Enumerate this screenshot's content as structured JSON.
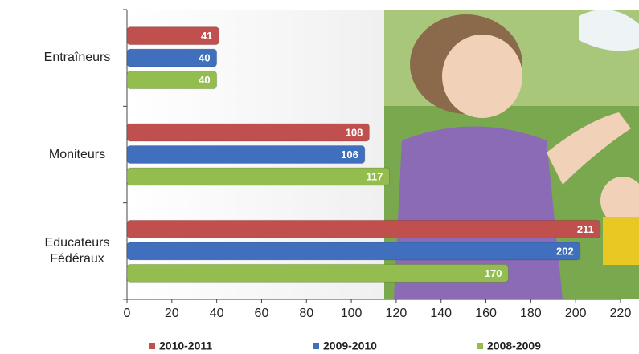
{
  "chart_data": {
    "type": "bar",
    "orientation": "horizontal",
    "categories": [
      "Entraîneurs",
      "Moniteurs",
      "Educateurs Fédéraux"
    ],
    "series": [
      {
        "name": "2010-2011",
        "color": "#c0504d",
        "values": [
          41,
          108,
          211
        ]
      },
      {
        "name": "2009-2010",
        "color": "#3f6fbd",
        "values": [
          40,
          106,
          202
        ]
      },
      {
        "name": "2008-2009",
        "color": "#94bd4f",
        "values": [
          40,
          117,
          170
        ]
      }
    ],
    "xlim": [
      0,
      220
    ],
    "xticks": [
      0,
      20,
      40,
      60,
      80,
      100,
      120,
      140,
      160,
      180,
      200,
      220
    ],
    "legend": "bottom"
  }
}
